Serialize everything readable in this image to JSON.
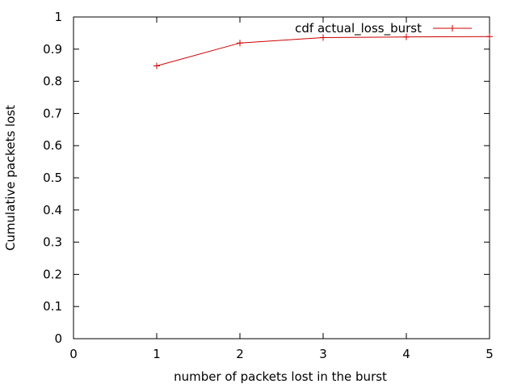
{
  "chart_data": {
    "type": "line",
    "xlabel": "number of packets lost in the burst",
    "ylabel": "Cumulative packets lost",
    "xlim": [
      0,
      5
    ],
    "ylim": [
      0,
      1
    ],
    "x_ticks": [
      "0",
      "1",
      "2",
      "3",
      "4",
      "5"
    ],
    "y_ticks": [
      "0",
      "0.1",
      "0.2",
      "0.3",
      "0.4",
      "0.5",
      "0.6",
      "0.7",
      "0.8",
      "0.9",
      "1"
    ],
    "grid": false,
    "legend_position": "top-right",
    "series": [
      {
        "name": "cdf actual_loss_burst",
        "color": "#cc0000",
        "marker": "plus",
        "x": [
          1,
          2,
          3,
          4,
          5
        ],
        "y": [
          0.848,
          0.919,
          0.936,
          0.938,
          0.939
        ]
      }
    ]
  }
}
